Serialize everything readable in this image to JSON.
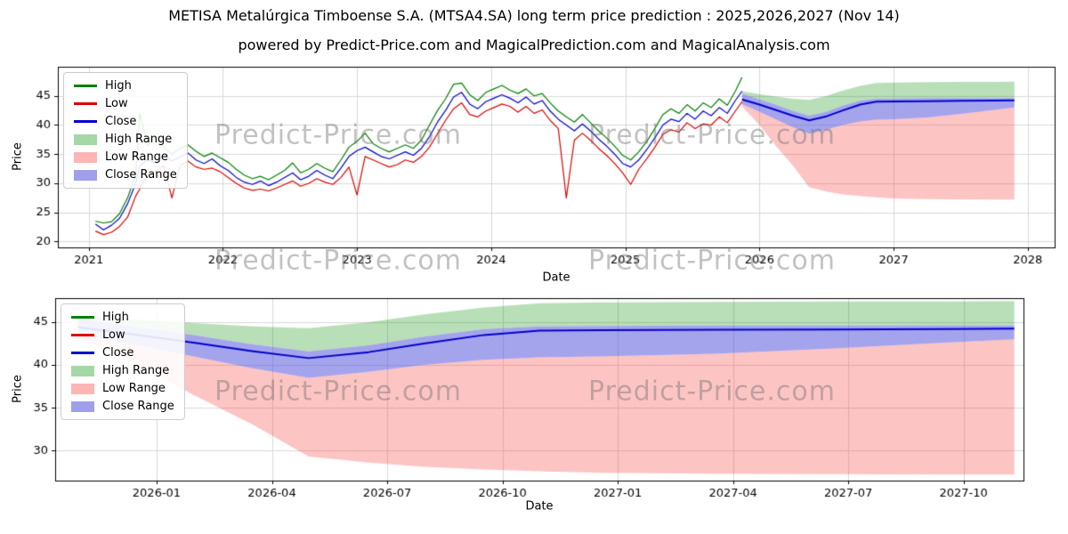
{
  "page": {
    "title": "METISA Metalúrgica Timboense S.A. (MTSA4.SA) long term price prediction : 2025,2026,2027 (Nov 14)",
    "subtitle": "powered by Predict-Price.com and MagicalPrediction.com and MagicalAnalysis.com",
    "watermark": "Predict-Price.com"
  },
  "colors": {
    "high": "#008000",
    "low": "#dd0000",
    "close": "#0000cc",
    "high_band": "rgba(0,140,0,0.28)",
    "low_band": "rgba(250,60,60,0.30)",
    "close_band": "rgba(80,80,220,0.52)",
    "grid": "#d8d8d8"
  },
  "legend": {
    "items": [
      {
        "label": "High",
        "type": "line",
        "color": "#008000"
      },
      {
        "label": "Low",
        "type": "line",
        "color": "#dd0000"
      },
      {
        "label": "Close",
        "type": "line",
        "color": "#0000cc"
      },
      {
        "label": "High Range",
        "type": "patch",
        "color": "rgba(0,140,0,0.35)"
      },
      {
        "label": "Low Range",
        "type": "patch",
        "color": "rgba(250,60,60,0.38)"
      },
      {
        "label": "Close Range",
        "type": "patch",
        "color": "rgba(80,80,220,0.55)"
      }
    ]
  },
  "chart_data": [
    {
      "type": "line",
      "title": "",
      "xlabel": "Date",
      "ylabel": "Price",
      "xlim": [
        2020.77,
        2028.2
      ],
      "ylim": [
        19.0,
        50.0
      ],
      "grid": true,
      "legend_position": "upper left",
      "xticks": {
        "values": [
          2021,
          2022,
          2023,
          2024,
          2025,
          2026,
          2027,
          2028
        ],
        "labels": [
          "2021",
          "2022",
          "2023",
          "2024",
          "2025",
          "2026",
          "2027",
          "2028"
        ]
      },
      "yticks": [
        20,
        25,
        30,
        35,
        40,
        45
      ],
      "historical": {
        "x": [
          2021.05,
          2021.11,
          2021.17,
          2021.23,
          2021.29,
          2021.35,
          2021.38,
          2021.44,
          2021.5,
          2021.56,
          2021.62,
          2021.68,
          2021.74,
          2021.8,
          2021.86,
          2021.92,
          2021.98,
          2022.04,
          2022.1,
          2022.16,
          2022.22,
          2022.28,
          2022.34,
          2022.4,
          2022.46,
          2022.52,
          2022.58,
          2022.64,
          2022.7,
          2022.76,
          2022.82,
          2022.88,
          2022.94,
          2023.0,
          2023.06,
          2023.12,
          2023.18,
          2023.24,
          2023.3,
          2023.36,
          2023.42,
          2023.48,
          2023.54,
          2023.6,
          2023.66,
          2023.72,
          2023.78,
          2023.84,
          2023.9,
          2023.96,
          2024.02,
          2024.08,
          2024.14,
          2024.2,
          2024.26,
          2024.32,
          2024.38,
          2024.44,
          2024.5,
          2024.56,
          2024.62,
          2024.68,
          2024.74,
          2024.8,
          2024.86,
          2024.92,
          2024.98,
          2025.04,
          2025.1,
          2025.16,
          2025.22,
          2025.28,
          2025.34,
          2025.4,
          2025.46,
          2025.52,
          2025.58,
          2025.64,
          2025.7,
          2025.76,
          2025.82,
          2025.87
        ],
        "close": [
          23.0,
          22.0,
          22.8,
          24.0,
          26.5,
          30.0,
          33.0,
          34.0,
          33.5,
          35.0,
          33.8,
          34.5,
          35.2,
          34.0,
          33.4,
          34.2,
          33.0,
          32.2,
          31.0,
          30.2,
          29.8,
          30.4,
          29.6,
          30.2,
          31.0,
          31.8,
          30.6,
          31.2,
          32.2,
          31.4,
          30.8,
          32.6,
          34.6,
          35.6,
          36.2,
          35.4,
          34.6,
          34.2,
          34.8,
          35.4,
          34.8,
          36.0,
          38.0,
          40.5,
          42.5,
          44.8,
          45.6,
          43.6,
          42.8,
          44.0,
          44.6,
          45.2,
          44.6,
          43.8,
          44.8,
          43.6,
          44.2,
          42.4,
          41.0,
          40.0,
          39.0,
          40.2,
          39.0,
          37.6,
          36.4,
          35.0,
          33.4,
          32.8,
          34.0,
          35.8,
          37.8,
          40.0,
          41.0,
          40.6,
          42.0,
          41.0,
          42.4,
          41.6,
          43.0,
          42.0,
          44.2,
          45.8
        ],
        "high": [
          23.5,
          23.2,
          23.4,
          24.8,
          27.5,
          31.5,
          42.0,
          36.5,
          38.0,
          36.2,
          35.0,
          36.0,
          36.6,
          35.5,
          34.6,
          35.2,
          34.4,
          33.6,
          32.4,
          31.4,
          30.8,
          31.2,
          30.6,
          31.4,
          32.2,
          33.5,
          31.8,
          32.4,
          33.4,
          32.6,
          32.0,
          34.0,
          36.2,
          37.2,
          38.6,
          36.8,
          36.0,
          35.4,
          36.0,
          36.6,
          36.0,
          37.4,
          40.0,
          42.5,
          44.5,
          47.0,
          47.2,
          45.2,
          44.2,
          45.6,
          46.2,
          46.8,
          46.0,
          45.4,
          46.2,
          45.0,
          45.4,
          43.8,
          42.4,
          41.4,
          40.5,
          41.8,
          40.4,
          39.0,
          37.8,
          36.4,
          34.8,
          34.0,
          35.4,
          37.2,
          39.4,
          41.8,
          42.8,
          42.0,
          43.5,
          42.4,
          43.8,
          43.0,
          44.5,
          43.4,
          45.8,
          48.2
        ],
        "low": [
          21.8,
          21.2,
          21.6,
          22.6,
          24.2,
          27.8,
          29.0,
          31.5,
          32.0,
          33.0,
          27.5,
          33.0,
          33.8,
          32.8,
          32.4,
          32.6,
          32.0,
          31.0,
          30.0,
          29.2,
          28.8,
          29.0,
          28.7,
          29.2,
          29.8,
          30.4,
          29.5,
          30.0,
          30.8,
          30.2,
          29.8,
          31.0,
          32.8,
          28.0,
          34.6,
          34.0,
          33.4,
          32.8,
          33.2,
          34.0,
          33.6,
          34.6,
          36.2,
          38.5,
          40.8,
          42.8,
          43.8,
          41.8,
          41.4,
          42.4,
          43.0,
          43.6,
          43.2,
          42.2,
          43.2,
          42.0,
          42.6,
          40.8,
          39.4,
          27.5,
          37.4,
          38.6,
          37.4,
          36.0,
          34.8,
          33.4,
          31.8,
          29.8,
          32.4,
          34.2,
          36.2,
          38.4,
          39.2,
          38.8,
          40.4,
          39.4,
          40.2,
          40.0,
          41.4,
          40.4,
          42.4,
          44.0
        ]
      },
      "forecast": {
        "x": [
          2025.87,
          2026.0,
          2026.12,
          2026.25,
          2026.37,
          2026.5,
          2026.62,
          2026.75,
          2026.87,
          2027.0,
          2027.25,
          2027.5,
          2027.75,
          2027.9
        ],
        "close": [
          44.4,
          43.5,
          42.6,
          41.6,
          40.8,
          41.5,
          42.5,
          43.5,
          44.0,
          44.05,
          44.1,
          44.15,
          44.2,
          44.25
        ],
        "close_upper": [
          45.4,
          44.4,
          43.5,
          42.4,
          41.6,
          42.3,
          43.3,
          44.2,
          44.5,
          44.55,
          44.6,
          44.6,
          44.6,
          44.6
        ],
        "close_lower": [
          43.6,
          42.3,
          41.0,
          39.6,
          38.5,
          39.2,
          40.0,
          40.6,
          40.9,
          41.0,
          41.3,
          41.9,
          42.6,
          43.0
        ],
        "high_upper": [
          45.8,
          45.3,
          44.9,
          44.5,
          44.3,
          45.0,
          45.9,
          46.7,
          47.2,
          47.3,
          47.35,
          47.4,
          47.4,
          47.45
        ],
        "low_lower": [
          43.2,
          40.0,
          36.5,
          33.0,
          29.3,
          28.6,
          28.1,
          27.8,
          27.6,
          27.4,
          27.3,
          27.25,
          27.2,
          27.2
        ]
      }
    },
    {
      "type": "line",
      "title": "",
      "xlabel": "Date",
      "ylabel": "Price",
      "xlim": [
        2025.82,
        2027.92
      ],
      "ylim": [
        26.5,
        47.8
      ],
      "grid": true,
      "legend_position": "upper left",
      "xticks": {
        "values": [
          2026.04,
          2026.29,
          2026.54,
          2026.79,
          2027.04,
          2027.29,
          2027.54,
          2027.79
        ],
        "labels": [
          "2026-01",
          "2026-04",
          "2026-07",
          "2026-10",
          "2027-01",
          "2027-04",
          "2027-07",
          "2027-10"
        ]
      },
      "yticks": [
        30,
        35,
        40,
        45
      ],
      "forecast": {
        "x": [
          2025.87,
          2026.0,
          2026.12,
          2026.25,
          2026.37,
          2026.5,
          2026.62,
          2026.75,
          2026.87,
          2027.0,
          2027.25,
          2027.5,
          2027.75,
          2027.9
        ],
        "close": [
          44.4,
          43.5,
          42.6,
          41.6,
          40.8,
          41.5,
          42.5,
          43.5,
          44.0,
          44.05,
          44.1,
          44.15,
          44.2,
          44.25
        ],
        "close_upper": [
          45.4,
          44.4,
          43.5,
          42.4,
          41.6,
          42.3,
          43.3,
          44.2,
          44.5,
          44.55,
          44.6,
          44.6,
          44.6,
          44.6
        ],
        "close_lower": [
          43.6,
          42.3,
          41.0,
          39.6,
          38.5,
          39.2,
          40.0,
          40.6,
          40.9,
          41.0,
          41.3,
          41.9,
          42.6,
          43.0
        ],
        "high_upper": [
          45.8,
          45.3,
          44.9,
          44.5,
          44.3,
          45.0,
          45.9,
          46.7,
          47.2,
          47.3,
          47.35,
          47.4,
          47.4,
          47.45
        ],
        "low_lower": [
          43.2,
          40.0,
          36.5,
          33.0,
          29.3,
          28.6,
          28.1,
          27.8,
          27.6,
          27.4,
          27.3,
          27.25,
          27.2,
          27.2
        ]
      }
    }
  ]
}
